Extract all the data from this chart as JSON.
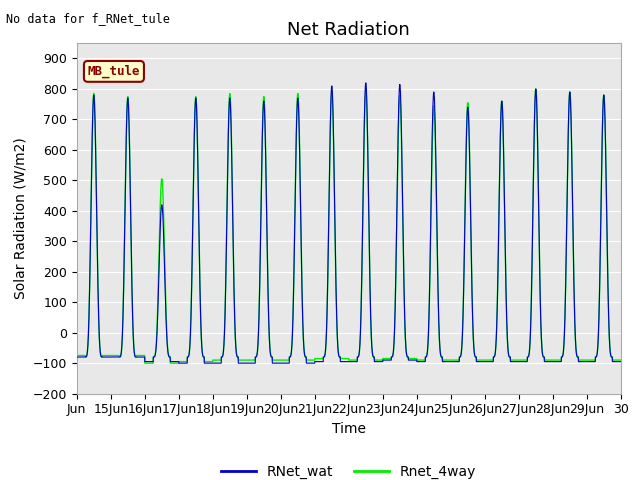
{
  "title": "Net Radiation",
  "xlabel": "Time",
  "ylabel": "Solar Radiation (W/m2)",
  "note": "No data for f_RNet_tule",
  "legend_label": "MB_tule",
  "ylim": [
    -200,
    950
  ],
  "yticks": [
    -200,
    -100,
    0,
    100,
    200,
    300,
    400,
    500,
    600,
    700,
    800,
    900
  ],
  "xtick_labels": [
    "Jun",
    "15Jun",
    "16Jun",
    "17Jun",
    "18Jun",
    "19Jun",
    "20Jun",
    "21Jun",
    "22Jun",
    "23Jun",
    "24Jun",
    "25Jun",
    "26Jun",
    "27Jun",
    "28Jun",
    "29Jun",
    "30"
  ],
  "line1_color": "#0000cc",
  "line2_color": "#00ee00",
  "line1_label": "RNet_wat",
  "line2_label": "Rnet_4way",
  "bg_color": "#e8e8e8",
  "title_fontsize": 13,
  "label_fontsize": 10,
  "tick_fontsize": 9,
  "night_base": -80,
  "day_peaks_wat": [
    780,
    770,
    420,
    770,
    770,
    760,
    770,
    810,
    820,
    815,
    790,
    740,
    760,
    800,
    790,
    780
  ],
  "day_peaks_4way": [
    785,
    775,
    505,
    775,
    785,
    775,
    785,
    790,
    800,
    780,
    745,
    755,
    760,
    800,
    790,
    780
  ],
  "night_offsets_wat": [
    0,
    0,
    -15,
    -20,
    -20,
    -20,
    -20,
    -15,
    -15,
    -10,
    -15,
    -15,
    -15,
    -15,
    -15,
    -15
  ],
  "night_offsets_4way": [
    5,
    5,
    -20,
    -15,
    -10,
    -10,
    -10,
    -5,
    -10,
    -5,
    -10,
    -10,
    -10,
    -10,
    -10,
    -10
  ]
}
